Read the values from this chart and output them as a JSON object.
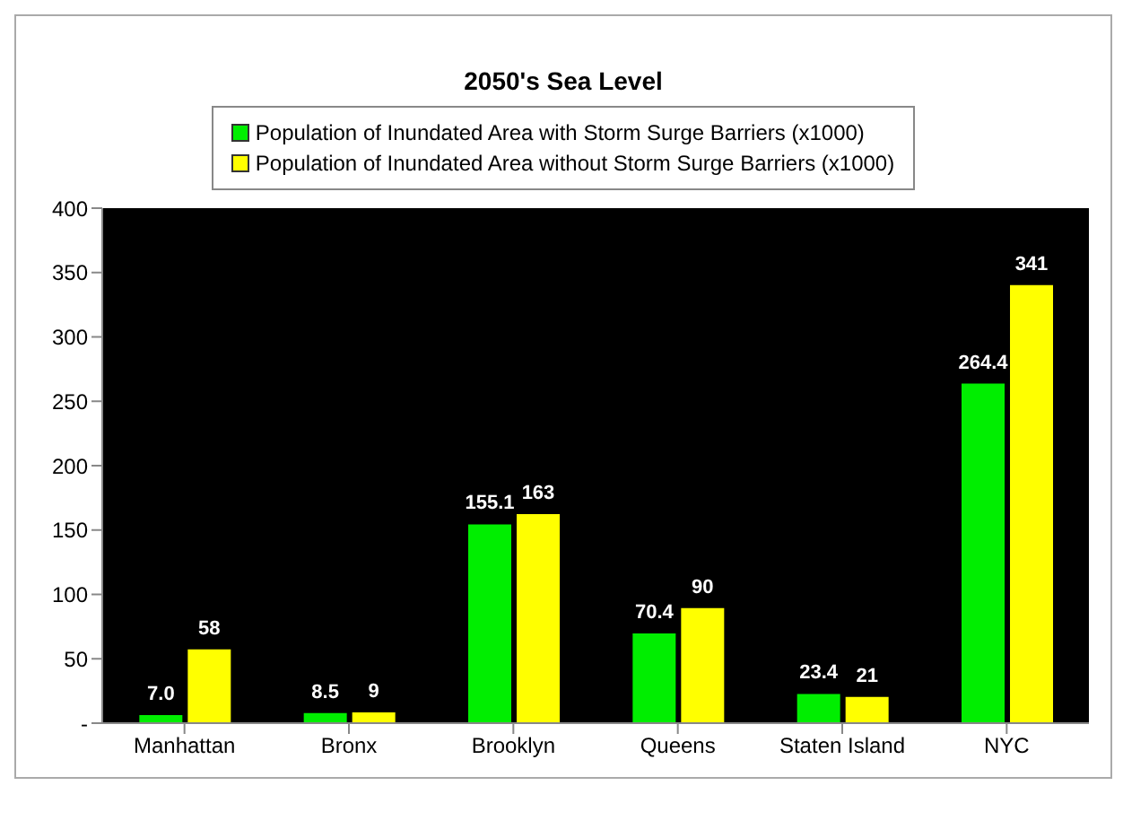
{
  "chart_data": {
    "type": "bar",
    "title": "2050's Sea Level",
    "categories": [
      "Manhattan",
      "Bronx",
      "Brooklyn",
      "Queens",
      "Staten Island",
      "NYC"
    ],
    "series": [
      {
        "name": "Population of Inundated Area with Storm Surge Barriers (x1000)",
        "color": "#00ee00",
        "values": [
          7.0,
          8.5,
          155.1,
          70.4,
          23.4,
          264.4
        ],
        "value_labels": [
          "7.0",
          "8.5",
          "155.1",
          "70.4",
          "23.4",
          "264.4"
        ]
      },
      {
        "name": "Population of Inundated Area without Storm Surge Barriers (x1000)",
        "color": "#ffff00",
        "values": [
          58,
          9,
          163,
          90,
          21,
          341
        ],
        "value_labels": [
          "58",
          "9",
          "163",
          "90",
          "21",
          "341"
        ]
      }
    ],
    "ylim": [
      0,
      400
    ],
    "yticks": [
      {
        "value": 0,
        "label": "-"
      },
      50,
      100,
      150,
      200,
      250,
      300,
      350,
      400
    ],
    "legend": "top"
  }
}
